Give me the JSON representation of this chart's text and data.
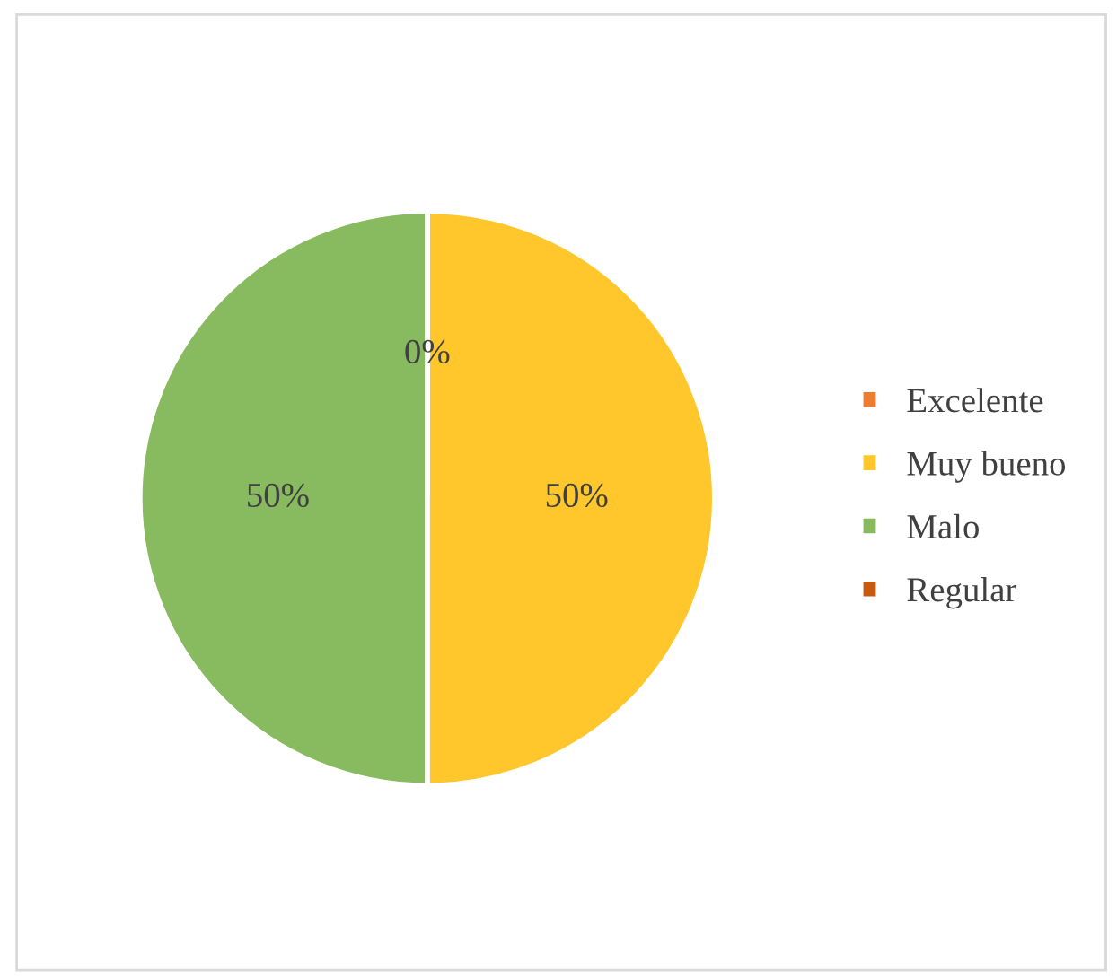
{
  "chart_data": {
    "type": "pie",
    "categories": [
      "Excelente",
      "Muy bueno",
      "Malo",
      "Regular"
    ],
    "values": [
      0,
      50,
      50,
      0
    ],
    "colors": [
      "#ed7d31",
      "#ffc72c",
      "#88bb60",
      "#c55a11"
    ],
    "value_labels": [
      "0%",
      "50%",
      "50%",
      null
    ],
    "legend": "right"
  }
}
